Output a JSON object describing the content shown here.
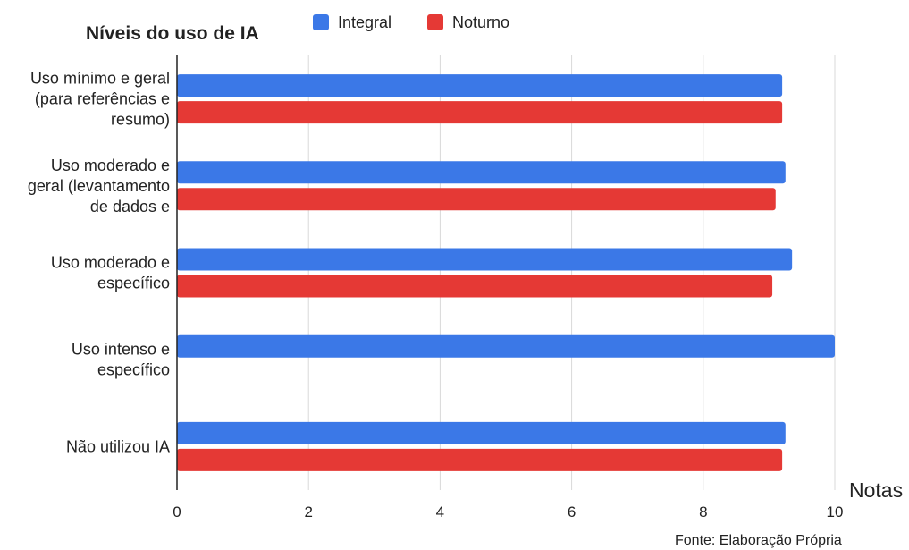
{
  "chart_data": {
    "type": "bar",
    "orientation": "horizontal",
    "title": "Níveis do uso de IA",
    "xlabel": "Notas",
    "ylabel": "",
    "xlim": [
      0,
      10
    ],
    "x_ticks": [
      "0",
      "2",
      "4",
      "6",
      "8",
      "10"
    ],
    "grid": true,
    "legend_position": "top",
    "categories": [
      "Uso mínimo e geral (para referências e resumo)",
      "Uso moderado e geral (levantamento de dados e",
      "Uso moderado e específico",
      "Uso intenso e específico",
      "Não utilizou IA"
    ],
    "category_lines": [
      [
        "Uso mínimo e geral",
        "(para referências e",
        "resumo)"
      ],
      [
        "Uso moderado e",
        "geral (levantamento",
        "de dados e"
      ],
      [
        "Uso moderado e",
        "específico"
      ],
      [
        "Uso intenso e",
        "específico"
      ],
      [
        "Não utilizou IA"
      ]
    ],
    "series": [
      {
        "name": "Integral",
        "color": "#3b78e7",
        "values": [
          9.2,
          9.25,
          9.35,
          10.0,
          9.25
        ]
      },
      {
        "name": "Noturno",
        "color": "#e53935",
        "values": [
          9.2,
          9.1,
          9.05,
          null,
          9.2
        ]
      }
    ],
    "source": "Fonte: Elaboração Própria"
  }
}
